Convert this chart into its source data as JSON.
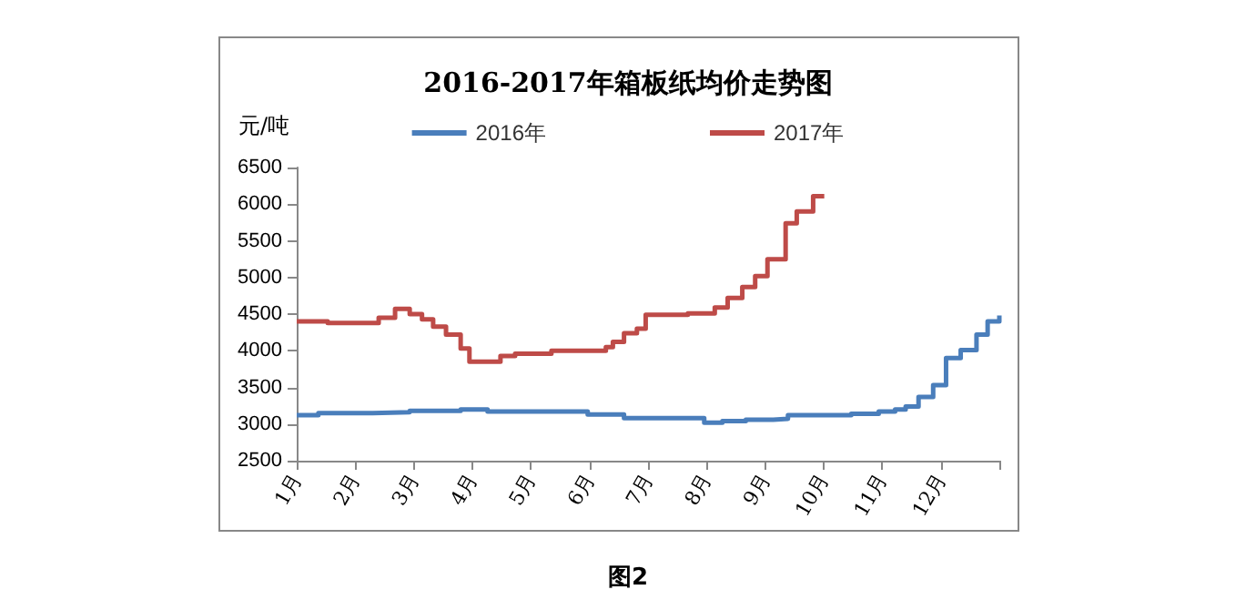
{
  "chart_data": {
    "type": "step",
    "title": "2016-2017年箱板纸均价走势图",
    "ylabel": "元/吨",
    "annotations": [
      "图2"
    ],
    "legend": "top",
    "grid": false,
    "marker": "none",
    "line_style": "solid",
    "xlim": [
      1,
      13
    ],
    "xticks": [
      {
        "value": 1,
        "label": "1月"
      },
      {
        "value": 2,
        "label": "2月"
      },
      {
        "value": 3,
        "label": "3月"
      },
      {
        "value": 4,
        "label": "4月"
      },
      {
        "value": 5,
        "label": "5月"
      },
      {
        "value": 6,
        "label": "6月"
      },
      {
        "value": 7,
        "label": "7月"
      },
      {
        "value": 8,
        "label": "8月"
      },
      {
        "value": 9,
        "label": "9月"
      },
      {
        "value": 10,
        "label": "10月"
      },
      {
        "value": 11,
        "label": "11月"
      },
      {
        "value": 12,
        "label": "12月"
      },
      {
        "value": 13,
        "label": null
      }
    ],
    "ylim": [
      2500,
      6500
    ],
    "yticks": [
      2500,
      3000,
      3500,
      4000,
      4500,
      5000,
      5500,
      6000,
      6500
    ],
    "series": [
      {
        "name": "2016年",
        "color": "#4a7ebb",
        "x": [
          1,
          1.37,
          2.3,
          2.93,
          3.8,
          4.26,
          5.97,
          6.59,
          7.96,
          8.27,
          8.67,
          9.14,
          9.39,
          10.47,
          10.94,
          11.22,
          11.4,
          11.62,
          11.87,
          12.09,
          12.34,
          12.61,
          12.8,
          13
        ],
        "values": [
          3120,
          3150,
          3160,
          3180,
          3200,
          3170,
          3130,
          3080,
          3020,
          3040,
          3060,
          3070,
          3120,
          3140,
          3170,
          3200,
          3240,
          3370,
          3530,
          3900,
          4010,
          4220,
          4400,
          4480
        ]
      },
      {
        "name": "2017年",
        "color": "#be4b48",
        "x": [
          1,
          1.53,
          2.4,
          2.68,
          2.93,
          3.14,
          3.33,
          3.55,
          3.8,
          3.95,
          4.48,
          4.73,
          5.35,
          6.28,
          6.4,
          6.59,
          6.81,
          6.96,
          7.68,
          8.14,
          8.36,
          8.61,
          8.83,
          9.04,
          9.35,
          9.54,
          9.82,
          10.01
        ],
        "values": [
          4400,
          4380,
          4450,
          4570,
          4500,
          4430,
          4330,
          4220,
          4030,
          3850,
          3930,
          3960,
          4000,
          4050,
          4120,
          4240,
          4300,
          4490,
          4510,
          4590,
          4720,
          4870,
          5020,
          5250,
          5740,
          5900,
          6110,
          6110
        ]
      }
    ]
  }
}
